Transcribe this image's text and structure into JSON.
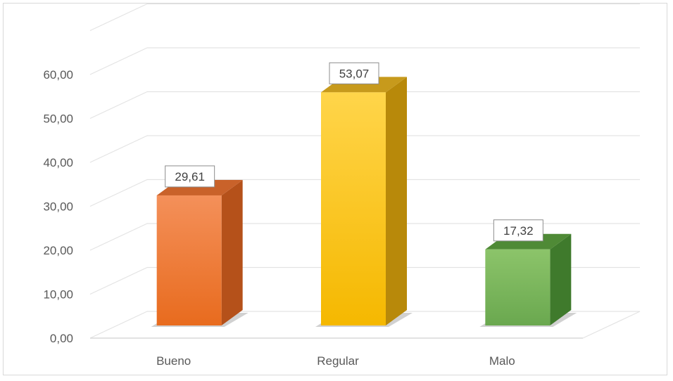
{
  "chart_data": {
    "type": "bar",
    "style": "3d-column",
    "categories": [
      "Bueno",
      "Regular",
      "Malo"
    ],
    "values": [
      29.61,
      53.07,
      17.32
    ],
    "value_labels": [
      "29,61",
      "53,07",
      "17,32"
    ],
    "title": "",
    "xlabel": "",
    "ylabel": "",
    "ylim": [
      0,
      70
    ],
    "y_ticks": [
      "0,00",
      "10,00",
      "20,00",
      "30,00",
      "40,00",
      "50,00",
      "60,00"
    ],
    "grid": true,
    "legend": "none",
    "bar_colors": [
      {
        "front_top": "#f4905a",
        "front_bottom": "#e86b1e",
        "side": "#b5511a",
        "top": "#c9622a"
      },
      {
        "front_top": "#ffd54a",
        "front_bottom": "#f5b800",
        "side": "#b8890a",
        "top": "#c79a1c"
      },
      {
        "front_top": "#8cc46a",
        "front_bottom": "#6aa84f",
        "side": "#3f7a2c",
        "top": "#4f8a36"
      }
    ],
    "gridline_color": "#e3e3e3",
    "axis_text_color": "#595959"
  }
}
